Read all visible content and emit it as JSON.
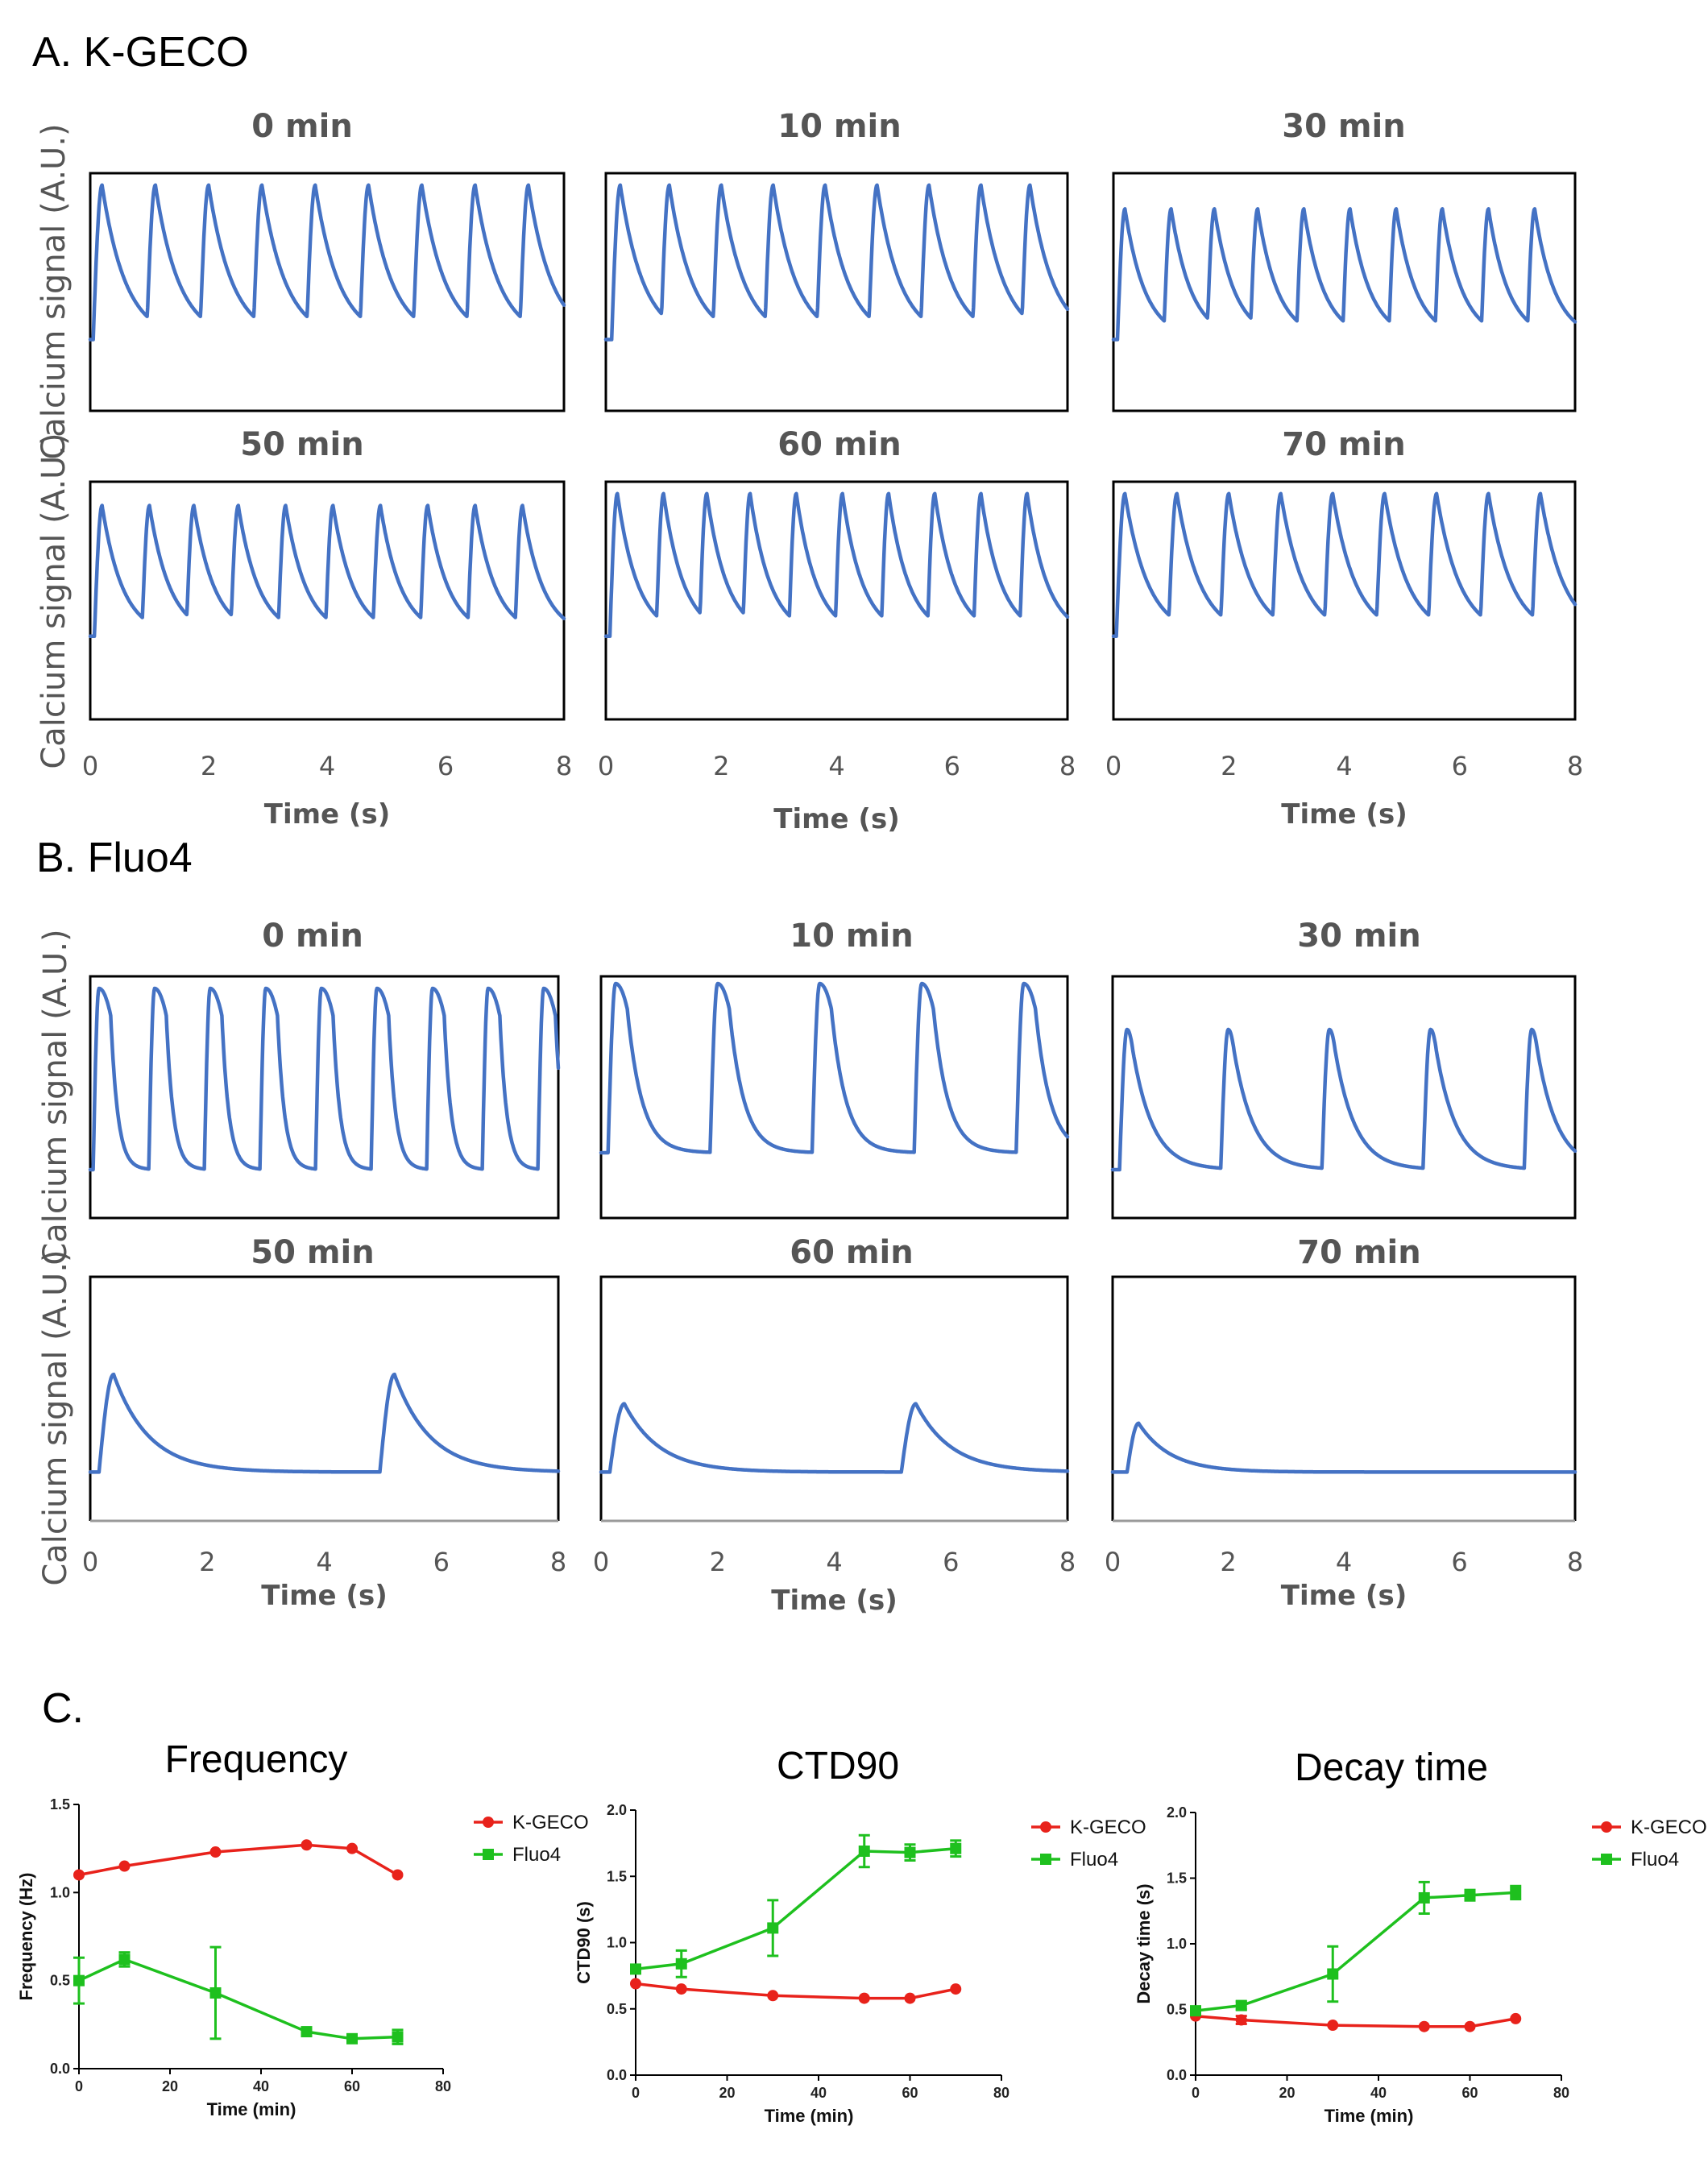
{
  "chart_data": [
    {
      "id": "A",
      "type": "line",
      "section_label": "A. K-GECO",
      "ylabel": "Calcium signal (A.U.)",
      "xlabel": "Time (s)",
      "xlim": [
        0,
        8
      ],
      "xticks": [
        "0",
        "2",
        "4",
        "6",
        "8"
      ],
      "panels": [
        {
          "title": "0 min",
          "peak_times": [
            0.2,
            1.1,
            2.0,
            2.9,
            3.8,
            4.7,
            5.6,
            6.5,
            7.4
          ],
          "peak_amplitude": 0.95,
          "baseline": 0.3,
          "rise_time": 0.15,
          "decay_tau": 0.4
        },
        {
          "title": "10 min",
          "peak_times": [
            0.25,
            1.1,
            2.0,
            2.9,
            3.8,
            4.7,
            5.6,
            6.5,
            7.35
          ],
          "peak_amplitude": 0.95,
          "baseline": 0.3,
          "rise_time": 0.15,
          "decay_tau": 0.4
        },
        {
          "title": "30 min",
          "peak_times": [
            0.2,
            1.0,
            1.75,
            2.5,
            3.3,
            4.1,
            4.9,
            5.7,
            6.5,
            7.3
          ],
          "peak_amplitude": 0.85,
          "baseline": 0.3,
          "rise_time": 0.13,
          "decay_tau": 0.35
        },
        {
          "title": "50 min",
          "peak_times": [
            0.2,
            1.0,
            1.75,
            2.5,
            3.3,
            4.1,
            4.9,
            5.7,
            6.5,
            7.3
          ],
          "peak_amplitude": 0.9,
          "baseline": 0.35,
          "rise_time": 0.13,
          "decay_tau": 0.35
        },
        {
          "title": "60 min",
          "peak_times": [
            0.2,
            1.0,
            1.75,
            2.5,
            3.3,
            4.1,
            4.9,
            5.7,
            6.5,
            7.3
          ],
          "peak_amplitude": 0.95,
          "baseline": 0.35,
          "rise_time": 0.13,
          "decay_tau": 0.35
        },
        {
          "title": "70 min",
          "peak_times": [
            0.2,
            1.1,
            2.0,
            2.9,
            3.8,
            4.7,
            5.6,
            6.5,
            7.4
          ],
          "peak_amplitude": 0.95,
          "baseline": 0.35,
          "rise_time": 0.15,
          "decay_tau": 0.4
        }
      ]
    },
    {
      "id": "B",
      "type": "line",
      "section_label": "B. Fluo4",
      "ylabel": "Calcium signal (A.U.)",
      "xlabel": "Time (s)",
      "xlim": [
        0,
        8
      ],
      "xticks": [
        "0",
        "2",
        "4",
        "6",
        "8"
      ],
      "panels": [
        {
          "title": "0 min",
          "peak_times": [
            0.15,
            1.1,
            2.05,
            3.0,
            3.95,
            4.9,
            5.85,
            6.8,
            7.75
          ],
          "peak_amplitude": 0.95,
          "baseline": 0.2,
          "rise_time": 0.1,
          "decay_tau": 0.12,
          "plateau": 0.2
        },
        {
          "title": "10 min",
          "peak_times": [
            0.25,
            2.0,
            3.75,
            5.5,
            7.25
          ],
          "peak_amplitude": 0.97,
          "baseline": 0.27,
          "rise_time": 0.13,
          "decay_tau": 0.25,
          "plateau": 0.2
        },
        {
          "title": "30 min",
          "peak_times": [
            0.25,
            2.0,
            3.75,
            5.5,
            7.25
          ],
          "peak_amplitude": 0.78,
          "baseline": 0.2,
          "rise_time": 0.13,
          "decay_tau": 0.35,
          "plateau": 0.1
        },
        {
          "title": "50 min",
          "peak_times": [
            0.4,
            5.2
          ],
          "peak_amplitude": 0.6,
          "baseline": 0.2,
          "rise_time": 0.25,
          "decay_tau": 0.6,
          "plateau": 0.0
        },
        {
          "title": "60 min",
          "peak_times": [
            0.4,
            5.4
          ],
          "peak_amplitude": 0.48,
          "baseline": 0.2,
          "rise_time": 0.25,
          "decay_tau": 0.6,
          "plateau": 0.0
        },
        {
          "title": "70 min",
          "peak_times": [
            0.45
          ],
          "peak_amplitude": 0.4,
          "baseline": 0.2,
          "rise_time": 0.2,
          "decay_tau": 0.55,
          "plateau": 0.0
        }
      ]
    },
    {
      "id": "C1",
      "type": "line",
      "section_label": "C.",
      "title": "Frequency",
      "xlabel": "Time (min)",
      "ylabel": "Frequency (Hz)",
      "xlim": [
        0,
        80
      ],
      "ylim": [
        0,
        1.5
      ],
      "xticks": [
        0,
        20,
        40,
        60,
        80
      ],
      "yticks": [
        "0.0",
        "0.5",
        "1.0",
        "1.5"
      ],
      "x": [
        0,
        10,
        30,
        50,
        60,
        70
      ],
      "series": [
        {
          "name": "K-GECO",
          "color": "#e8221b",
          "marker": "circle",
          "values": [
            1.1,
            1.15,
            1.23,
            1.27,
            1.25,
            1.1
          ],
          "errors": [
            0,
            0,
            0,
            0,
            0,
            0
          ]
        },
        {
          "name": "Fluo4",
          "color": "#1ec01e",
          "marker": "square",
          "values": [
            0.5,
            0.62,
            0.43,
            0.21,
            0.17,
            0.18
          ],
          "errors": [
            0.13,
            0.04,
            0.26,
            0.02,
            0.02,
            0.04
          ]
        }
      ]
    },
    {
      "id": "C2",
      "type": "line",
      "title": "CTD90",
      "xlabel": "Time (min)",
      "ylabel": "CTD90 (s)",
      "xlim": [
        0,
        80
      ],
      "ylim": [
        0,
        2.0
      ],
      "xticks": [
        0,
        20,
        40,
        60,
        80
      ],
      "yticks": [
        "0.0",
        "0.5",
        "1.0",
        "1.5",
        "2.0"
      ],
      "x": [
        0,
        10,
        30,
        50,
        60,
        70
      ],
      "series": [
        {
          "name": "K-GECO",
          "color": "#e8221b",
          "marker": "circle",
          "values": [
            0.69,
            0.65,
            0.6,
            0.58,
            0.58,
            0.65
          ],
          "errors": [
            0,
            0,
            0,
            0,
            0,
            0
          ]
        },
        {
          "name": "Fluo4",
          "color": "#1ec01e",
          "marker": "square",
          "values": [
            0.8,
            0.84,
            1.11,
            1.69,
            1.68,
            1.71
          ],
          "errors": [
            0.03,
            0.1,
            0.21,
            0.12,
            0.06,
            0.06
          ]
        }
      ]
    },
    {
      "id": "C3",
      "type": "line",
      "title": "Decay time",
      "xlabel": "Time (min)",
      "ylabel": "Decay time (s)",
      "xlim": [
        0,
        80
      ],
      "ylim": [
        0,
        2.0
      ],
      "xticks": [
        0,
        20,
        40,
        60,
        80
      ],
      "yticks": [
        "0.0",
        "0.5",
        "1.0",
        "1.5",
        "2.0"
      ],
      "x": [
        0,
        10,
        30,
        50,
        60,
        70
      ],
      "series": [
        {
          "name": "K-GECO",
          "color": "#e8221b",
          "marker": "circle",
          "values": [
            0.45,
            0.42,
            0.38,
            0.37,
            0.37,
            0.43
          ],
          "errors": [
            0,
            0.03,
            0,
            0,
            0,
            0
          ]
        },
        {
          "name": "Fluo4",
          "color": "#1ec01e",
          "marker": "square",
          "values": [
            0.49,
            0.53,
            0.77,
            1.35,
            1.37,
            1.39
          ],
          "errors": [
            0.02,
            0.03,
            0.21,
            0.12,
            0.04,
            0.05
          ]
        }
      ]
    }
  ]
}
